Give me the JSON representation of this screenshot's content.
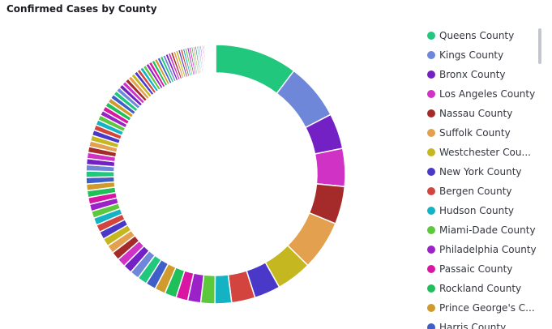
{
  "chart_data": {
    "type": "donut",
    "title": "Confirmed Cases by County",
    "categories": [
      "Queens County",
      "Kings County",
      "Bronx County",
      "Los Angeles County",
      "Nassau County",
      "Suffolk County",
      "Westchester Cou...",
      "New York County",
      "Bergen County",
      "Hudson County",
      "Miami-Dade County",
      "Philadelphia County",
      "Passaic County",
      "Rockland County",
      "Prince George's C...",
      "Harris County",
      null,
      null,
      null,
      null,
      null,
      null,
      null,
      null,
      null,
      null,
      null,
      null,
      null,
      null,
      null,
      null,
      null,
      null,
      null,
      null,
      null,
      null,
      null,
      null,
      null,
      null,
      null,
      null,
      null,
      null,
      null,
      null,
      null,
      null,
      null,
      null,
      null,
      null,
      null,
      null,
      null,
      null,
      null,
      null,
      null,
      null,
      null,
      null,
      null,
      null,
      null,
      null,
      null,
      null,
      null,
      null,
      null,
      null,
      null,
      null,
      null,
      null,
      null,
      null,
      null,
      null,
      null,
      null,
      null,
      null,
      null,
      null,
      null,
      null,
      null,
      null,
      null,
      null,
      null,
      null,
      null,
      null,
      null,
      null
    ],
    "values": [
      35,
      24,
      15,
      16,
      16,
      21,
      15,
      11,
      10,
      7,
      6,
      5.5,
      5,
      5,
      4.5,
      4.3,
      4.1,
      3.9,
      3.8,
      3.7,
      3.6,
      3.5,
      3.4,
      3.3,
      3.2,
      3.1,
      3,
      3,
      2.9,
      2.9,
      2.8,
      2.75,
      2.7,
      2.65,
      2.6,
      2.55,
      2.5,
      2.45,
      2.4,
      2.35,
      2.3,
      2.25,
      2.2,
      2.15,
      2.1,
      2.05,
      2,
      1.95,
      1.9,
      1.85,
      1.8,
      1.75,
      1.7,
      1.65,
      1.6,
      1.55,
      1.5,
      1.5,
      1.45,
      1.4,
      1.4,
      1.35,
      1.3,
      1.3,
      1.25,
      1.2,
      1.2,
      1.15,
      1.1,
      1.1,
      1.05,
      1,
      1,
      0.95,
      0.9,
      0.9,
      0.85,
      0.8,
      0.8,
      0.75,
      0.7,
      0.7,
      0.65,
      0.6,
      0.6,
      0.55,
      0.5,
      0.5,
      0.45,
      0.4,
      0.4,
      0.35,
      0.3,
      0.3,
      0.25,
      0.2,
      0.2,
      0.15,
      0.1,
      0.1
    ],
    "palette": [
      "#20c77c",
      "#6f87d8",
      "#7321c4",
      "#d032c6",
      "#a52a2a",
      "#e3a04f",
      "#c4b71f",
      "#4a39c9",
      "#d3443f",
      "#14b3c4",
      "#5cc83b",
      "#9b22c9",
      "#d915a3",
      "#1fbf5a",
      "#d09a2c",
      "#3f5ec8"
    ],
    "legend": "right"
  }
}
